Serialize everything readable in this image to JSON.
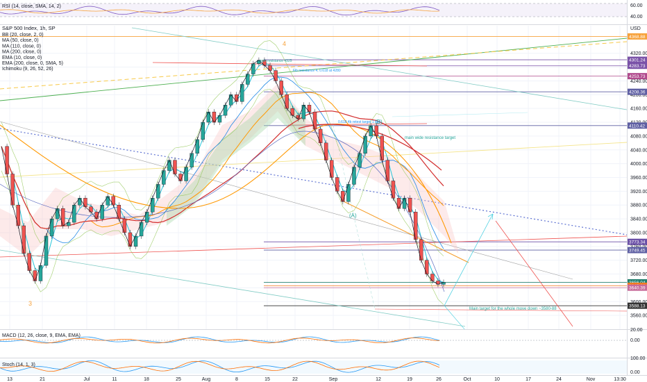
{
  "chart_data": {
    "type": "line",
    "title": "S&P 500 Index, 1h, SP",
    "currency": "USD",
    "x": [
      "13",
      "21",
      "Jul",
      "11",
      "18",
      "25",
      "Aug",
      "8",
      "15",
      "22",
      "Sep",
      "12",
      "19",
      "26",
      "Oct",
      "10",
      "17",
      "24",
      "Nov",
      "13:30"
    ],
    "ylim": [
      3520,
      4400
    ],
    "yticks": [
      3560,
      3600,
      3640,
      3680,
      3720,
      3760,
      3800,
      3840,
      3880,
      3920,
      3960,
      4000,
      4040,
      4080,
      4120,
      4160,
      4200,
      4240,
      4280,
      4320
    ],
    "indicators": [
      "BB (20, close, 2, 0)",
      "MA (50, close, 0)",
      "MA (110, close, 0)",
      "MA (200, close, 0)",
      "EMA (10, close, 0)",
      "EMA (200, close, 0, SMA, 5)",
      "Ichimoku (9, 26, 52, 26)"
    ],
    "price_tags": [
      {
        "value": "4368.88",
        "color": "#f7a23b",
        "y": 4368.88
      },
      {
        "value": "4301.24",
        "color": "#7a52a8",
        "y": 4301.24
      },
      {
        "value": "4283.73",
        "color": "#7a52a8",
        "y": 4283.73
      },
      {
        "value": "4253.73",
        "color": "#b04a8c",
        "y": 4253.73
      },
      {
        "value": "4208.36",
        "color": "#5e5fa3",
        "y": 4208.36
      },
      {
        "value": "4110.42",
        "color": "#5e5fa3",
        "y": 4110.42
      },
      {
        "value": "3773.34",
        "color": "#6a4fa6",
        "y": 3773.34
      },
      {
        "value": "3749.45",
        "color": "#5e5fa3",
        "y": 3749.45
      },
      {
        "value": "3656.04",
        "color": "#26806f",
        "y": 3656.04
      },
      {
        "value": "3645.93",
        "color": "#f2791f",
        "y": 3645.93
      },
      {
        "value": "3640.39",
        "color": "#c76b9a",
        "y": 3640.39
      },
      {
        "value": "3588.13",
        "color": "#333333",
        "y": 3588.13
      }
    ],
    "close_series": [
      [
        0,
        4050
      ],
      [
        1,
        3970
      ],
      [
        2,
        3880
      ],
      [
        3,
        3820
      ],
      [
        4,
        3740
      ],
      [
        5,
        3690
      ],
      [
        6,
        3660
      ],
      [
        7,
        3705
      ],
      [
        8,
        3790
      ],
      [
        9,
        3840
      ],
      [
        10,
        3870
      ],
      [
        11,
        3820
      ],
      [
        12,
        3830
      ],
      [
        13,
        3880
      ],
      [
        14,
        3900
      ],
      [
        15,
        3875
      ],
      [
        16,
        3860
      ],
      [
        17,
        3840
      ],
      [
        18,
        3880
      ],
      [
        19,
        3905
      ],
      [
        20,
        3880
      ],
      [
        21,
        3840
      ],
      [
        22,
        3800
      ],
      [
        23,
        3760
      ],
      [
        24,
        3790
      ],
      [
        25,
        3830
      ],
      [
        26,
        3860
      ],
      [
        27,
        3900
      ],
      [
        28,
        3940
      ],
      [
        29,
        3980
      ],
      [
        30,
        4010
      ],
      [
        31,
        3970
      ],
      [
        32,
        3950
      ],
      [
        33,
        3990
      ],
      [
        34,
        4030
      ],
      [
        35,
        4070
      ],
      [
        36,
        4120
      ],
      [
        37,
        4150
      ],
      [
        38,
        4120
      ],
      [
        39,
        4140
      ],
      [
        40,
        4170
      ],
      [
        41,
        4200
      ],
      [
        42,
        4180
      ],
      [
        43,
        4230
      ],
      [
        44,
        4260
      ],
      [
        45,
        4290
      ],
      [
        46,
        4300
      ],
      [
        47,
        4285
      ],
      [
        48,
        4270
      ],
      [
        49,
        4240
      ],
      [
        50,
        4200
      ],
      [
        51,
        4160
      ],
      [
        52,
        4140
      ],
      [
        53,
        4130
      ],
      [
        54,
        4170
      ],
      [
        55,
        4150
      ],
      [
        56,
        4100
      ],
      [
        57,
        4060
      ],
      [
        58,
        4010
      ],
      [
        59,
        3960
      ],
      [
        60,
        3920
      ],
      [
        61,
        3890
      ],
      [
        62,
        3940
      ],
      [
        63,
        3990
      ],
      [
        64,
        4030
      ],
      [
        65,
        4080
      ],
      [
        66,
        4110
      ],
      [
        67,
        4080
      ],
      [
        68,
        4010
      ],
      [
        69,
        3950
      ],
      [
        70,
        3900
      ],
      [
        71,
        3870
      ],
      [
        72,
        3900
      ],
      [
        73,
        3860
      ],
      [
        74,
        3780
      ],
      [
        75,
        3720
      ],
      [
        76,
        3680
      ],
      [
        77,
        3660
      ],
      [
        78,
        3650
      ],
      [
        79,
        3656
      ]
    ],
    "annotations": [
      {
        "text": "4",
        "color": "#f7a23b"
      },
      {
        "text": "3",
        "color": "#f7a23b"
      },
      {
        "text": "(A)",
        "color": "#26a69a"
      },
      {
        "text": "(B)",
        "color": "#26a69a"
      },
      {
        "text": "main resistance 4325",
        "color": "#26a69a"
      },
      {
        "text": "Fib resistance 4, 0.618 at 4280",
        "color": "#2196f3"
      },
      {
        "text": "0.618 4b retest target 1 fact",
        "color": "#2196f3"
      },
      {
        "text": "main wide resistance target",
        "color": "#26a69a"
      },
      {
        "text": "Main target for the whole move down ~3580-88",
        "color": "#26a69a"
      }
    ]
  },
  "rsi": {
    "label": "RSI (14, close, SMA, 14, 2)",
    "ticks": [
      "60.00",
      "40.00"
    ]
  },
  "macd": {
    "label": "MACD (12, 26, close, 9, EMA, EMA)",
    "ticks": [
      "20.00",
      "0.00"
    ]
  },
  "stoch": {
    "label": "Stoch (14, 1, 3)",
    "ticks": [
      "100.00",
      "0.00"
    ]
  }
}
